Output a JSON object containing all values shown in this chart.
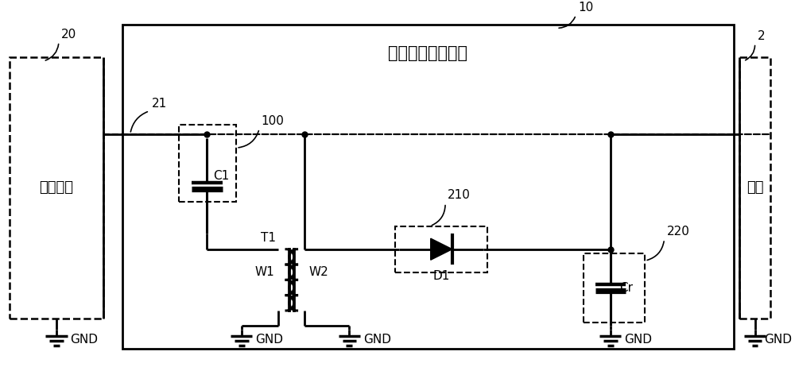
{
  "title": "谐波能量回收电路",
  "label_rf": "射频电源",
  "label_load": "负载",
  "label_gnd": "GND",
  "label_C1": "C1",
  "label_W1": "W1",
  "label_W2": "W2",
  "label_D1": "D1",
  "label_Cr": "Cr",
  "label_T1": "T1",
  "ref_10": "10",
  "ref_20": "20",
  "ref_21": "21",
  "ref_2": "2",
  "ref_100": "100",
  "ref_210": "210",
  "ref_220": "220",
  "bg_color": "#ffffff",
  "line_color": "#000000",
  "figsize": [
    10.0,
    4.62
  ],
  "dpi": 100
}
